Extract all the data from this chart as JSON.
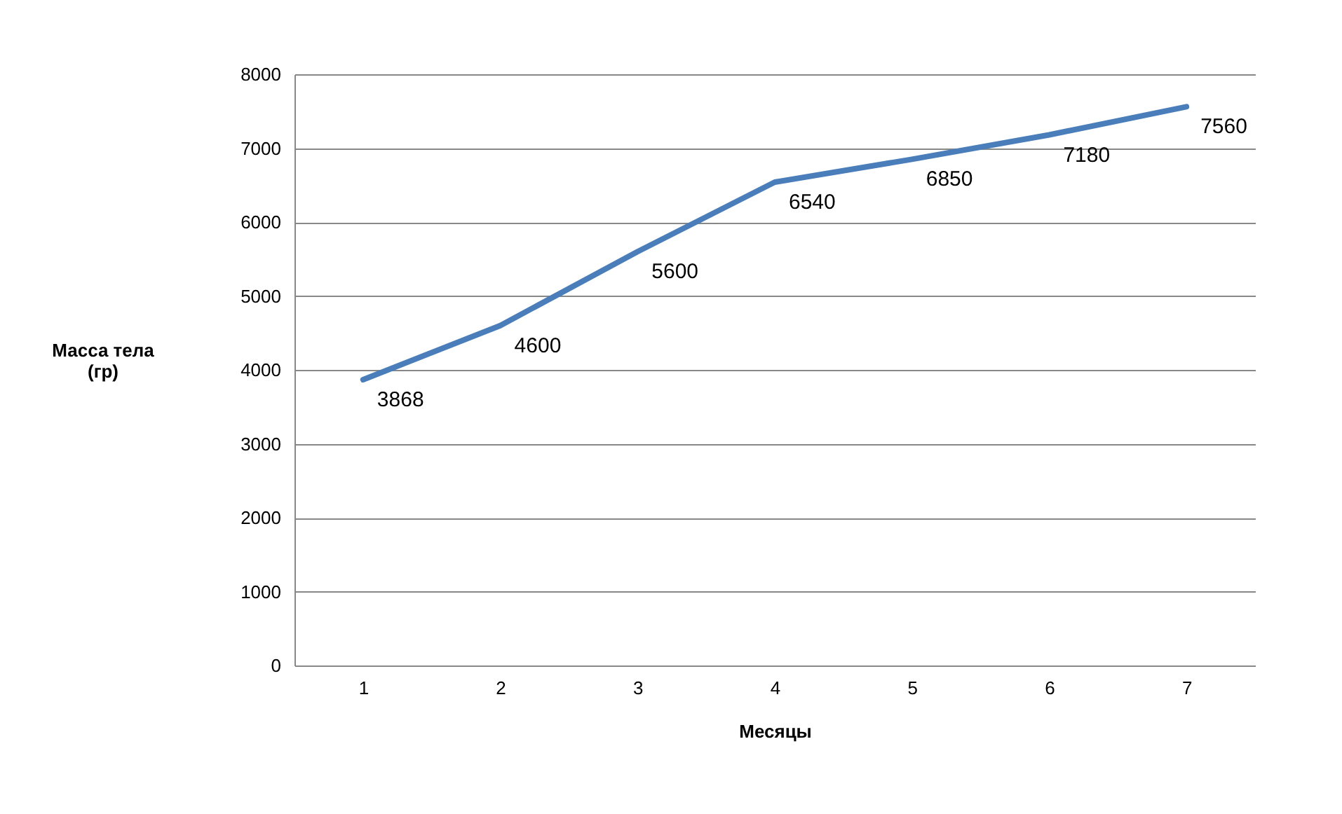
{
  "chart_data": {
    "type": "line",
    "xlabel": "Месяцы",
    "ylabel": "Масса тела (гр)",
    "categories": [
      "1",
      "2",
      "3",
      "4",
      "5",
      "6",
      "7"
    ],
    "series": [
      {
        "color": "#4a7ebb",
        "values": [
          3868,
          4600,
          5600,
          6540,
          6850,
          7180,
          7560
        ]
      }
    ],
    "ylim": [
      0,
      8000
    ],
    "yticks": [
      0,
      1000,
      2000,
      3000,
      4000,
      5000,
      6000,
      7000,
      8000
    ],
    "grid": "y",
    "legend": false,
    "marker": "none",
    "line_style": "solid",
    "data_labels": true
  }
}
